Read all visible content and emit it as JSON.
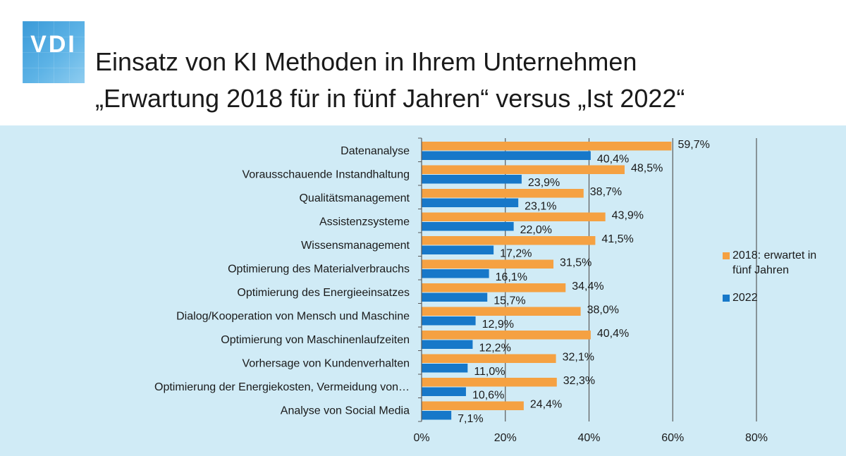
{
  "header": {
    "logo_text": "VDI",
    "title": "Einsatz von KI Methoden in Ihrem Unternehmen",
    "subtitle": "„Erwartung 2018 für in fünf Jahren“ versus „Ist 2022“"
  },
  "colors": {
    "series_2018": "#f5a142",
    "series_2022": "#1778c9",
    "background": "#d0ebf6",
    "gridline": "#595959"
  },
  "chart_data": {
    "type": "bar",
    "orientation": "horizontal",
    "categories": [
      "Datenanalyse",
      "Vorausschauende Instandhaltung",
      "Qualitätsmanagement",
      "Assistenzsysteme",
      "Wissensmanagement",
      "Optimierung des Materialverbrauchs",
      "Optimierung des Energieeinsatzes",
      "Dialog/Kooperation von Mensch und Maschine",
      "Optimierung von Maschinenlaufzeiten",
      "Vorhersage von Kundenverhalten",
      "Optimierung der Energiekosten, Vermeidung von…",
      "Analyse von Social Media"
    ],
    "series": [
      {
        "name": "2018: erwartet in fünf Jahren",
        "color": "#f5a142",
        "values": [
          59.7,
          48.5,
          38.7,
          43.9,
          41.5,
          31.5,
          34.4,
          38.0,
          40.4,
          32.1,
          32.3,
          24.4
        ],
        "labels": [
          "59,7%",
          "48,5%",
          "38,7%",
          "43,9%",
          "41,5%",
          "31,5%",
          "34,4%",
          "38,0%",
          "40,4%",
          "32,1%",
          "32,3%",
          "24,4%"
        ]
      },
      {
        "name": "2022",
        "color": "#1778c9",
        "values": [
          40.4,
          23.9,
          23.1,
          22.0,
          17.2,
          16.1,
          15.7,
          12.9,
          12.2,
          11.0,
          10.6,
          7.1
        ],
        "labels": [
          "40,4%",
          "23,9%",
          "23,1%",
          "22,0%",
          "17,2%",
          "16,1%",
          "15,7%",
          "12,9%",
          "12,2%",
          "11,0%",
          "10,6%",
          "7,1%"
        ]
      }
    ],
    "xlim": [
      0,
      80
    ],
    "x_ticks": [
      0,
      20,
      40,
      60,
      80
    ],
    "x_tick_labels": [
      "0%",
      "20%",
      "40%",
      "60%",
      "80%"
    ],
    "grid": true,
    "legend_position": "right"
  }
}
